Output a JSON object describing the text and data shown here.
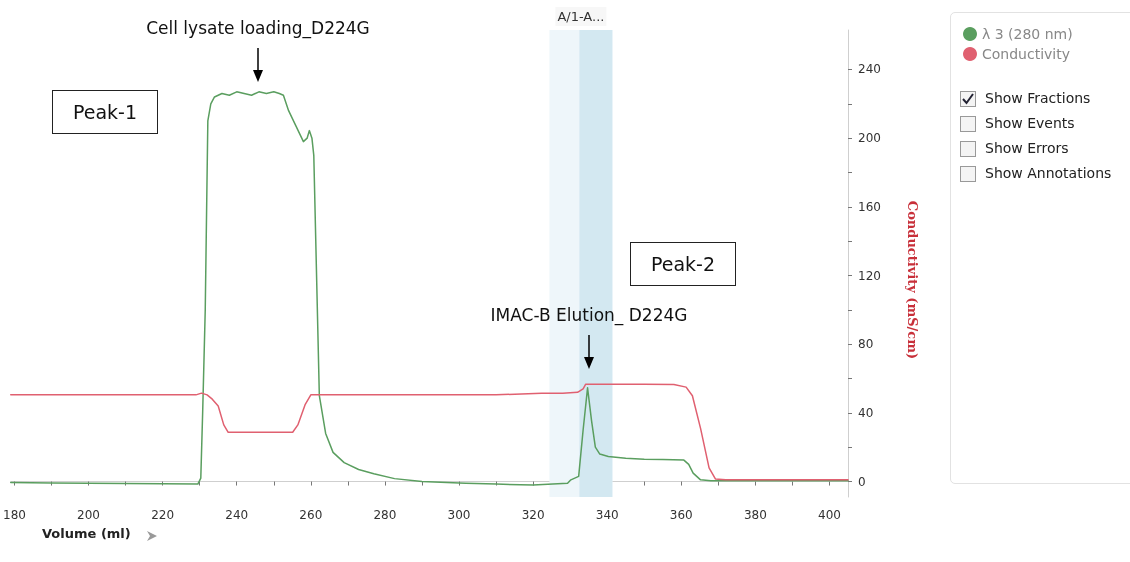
{
  "chart_data": {
    "type": "line",
    "xlabel": "Volume (ml)",
    "y2label": "Conductivity (mS/cm)",
    "xlim": [
      179,
      405
    ],
    "xticks": [
      180,
      {
        "value": 190,
        "label": null
      },
      200,
      {
        "value": 210,
        "label": null
      },
      220,
      {
        "value": 230,
        "label": null
      },
      240,
      {
        "value": 250,
        "label": null
      },
      260,
      {
        "value": 270,
        "label": null
      },
      280,
      {
        "value": 290,
        "label": null
      },
      300,
      {
        "value": 310,
        "label": null
      },
      320,
      {
        "value": 330,
        "label": null
      },
      340,
      {
        "value": 350,
        "label": null
      },
      360,
      {
        "value": 370,
        "label": null
      },
      380,
      {
        "value": 390,
        "label": null
      },
      400
    ],
    "y2lim": [
      -9,
      263
    ],
    "y2ticks": [
      0,
      {
        "value": 20,
        "label": null
      },
      40,
      {
        "value": 60,
        "label": null
      },
      80,
      {
        "value": 100,
        "label": null
      },
      120,
      {
        "value": 140,
        "label": null
      },
      160,
      {
        "value": 180,
        "label": null
      },
      200,
      {
        "value": 220,
        "label": null
      },
      240
    ],
    "grid": false,
    "legend": "top right",
    "marker": "none",
    "line_style": "solid",
    "bands": [
      {
        "axis": "x",
        "from": 324.4,
        "to": 341.4,
        "label": "A/1-A...",
        "color": "#eef6fa"
      },
      {
        "axis": "x",
        "from": 332.5,
        "to": 341.4,
        "color": "#d3e8f1"
      }
    ],
    "series": [
      {
        "name": "λ 3 (280 nm)",
        "color": "#5a9e5f",
        "axis": "y2",
        "x": [
          179,
          190,
          200,
          210,
          220,
          229.5,
          230.3,
          230.8,
          231.5,
          232.2,
          233,
          234,
          236,
          238,
          240,
          242,
          244,
          246,
          248,
          250,
          251.5,
          252.6,
          254,
          256,
          258,
          259,
          259.6,
          260.3,
          260.8,
          262.3,
          264,
          266,
          269,
          272.9,
          277,
          282.6,
          290,
          301.8,
          310,
          320,
          329.3,
          330.2,
          332.3,
          333.5,
          334.7,
          335.8,
          336.8,
          338,
          340.3,
          345,
          350,
          355,
          360.7,
          362,
          363.2,
          365.2,
          368,
          375,
          390,
          405
        ],
        "values": [
          -0.6,
          -0.8,
          -1,
          -1.1,
          -1.3,
          -1.5,
          2,
          40,
          100,
          210,
          220,
          224,
          226,
          225,
          227,
          226,
          225,
          227,
          226,
          227,
          226,
          225,
          216,
          207,
          198,
          200,
          204.4,
          200,
          190,
          50,
          28,
          17,
          11,
          7,
          4.5,
          1.7,
          0,
          -1,
          -1.5,
          -2,
          -1,
          1,
          3,
          30,
          54.6,
          35,
          20,
          16,
          14.6,
          13.5,
          13,
          12.8,
          12.5,
          10,
          4.9,
          1,
          0.5,
          0.5,
          0.5,
          0.5
        ]
      },
      {
        "name": "Conductivity",
        "color": "#e06070",
        "axis": "y2",
        "x": [
          179,
          200,
          220,
          229,
          230.5,
          232,
          233.4,
          235,
          236.5,
          237.7,
          240,
          245,
          250,
          255.1,
          256.5,
          258.5,
          260,
          270,
          290,
          310,
          322.3,
          328,
          332,
          333.5,
          334.2,
          340,
          350,
          358,
          361.3,
          363,
          365.2,
          367.5,
          369.2,
          372,
          385,
          405
        ],
        "values": [
          50.5,
          50.5,
          50.5,
          50.5,
          51.5,
          50.5,
          48,
          44,
          33,
          28.7,
          28.7,
          28.7,
          28.7,
          28.7,
          33,
          45,
          50.5,
          50.5,
          50.5,
          50.5,
          51.5,
          51.5,
          52,
          54,
          56.7,
          56.7,
          56.7,
          56.5,
          55,
          50,
          31,
          8,
          1.5,
          1,
          1,
          1
        ]
      }
    ],
    "annotations": [
      "Cell lysate loading_D224G",
      "Peak-1",
      "Peak-2",
      "IMAC-B Elution_ D224G",
      "Show Fractions",
      "Show Events",
      "Show Errors",
      "Show Annotations"
    ]
  }
}
